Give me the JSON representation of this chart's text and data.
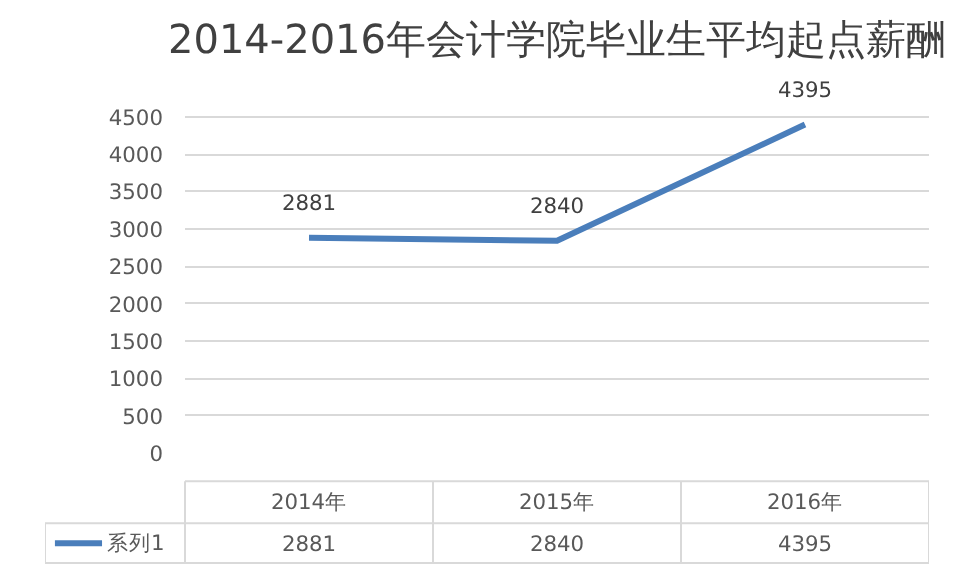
{
  "chart_data": {
    "type": "line",
    "title": "2014-2016年会计学院毕业生平均起点薪酬",
    "categories": [
      "2014年",
      "2015年",
      "2016年"
    ],
    "series": [
      {
        "name": "系列1",
        "color": "#4a7ebb",
        "values": [
          2881,
          2840,
          4395
        ],
        "value_labels": [
          "2881",
          "2840",
          "4395"
        ]
      }
    ],
    "ylim": [
      0,
      4500
    ],
    "yticks": [
      0,
      500,
      1000,
      1500,
      2000,
      2500,
      3000,
      3500,
      4000,
      4500
    ],
    "annotations": [
      "2881",
      "2840",
      "4395"
    ],
    "grid": "y",
    "legend": "bottom",
    "marker": "none",
    "line_style": "solid"
  }
}
